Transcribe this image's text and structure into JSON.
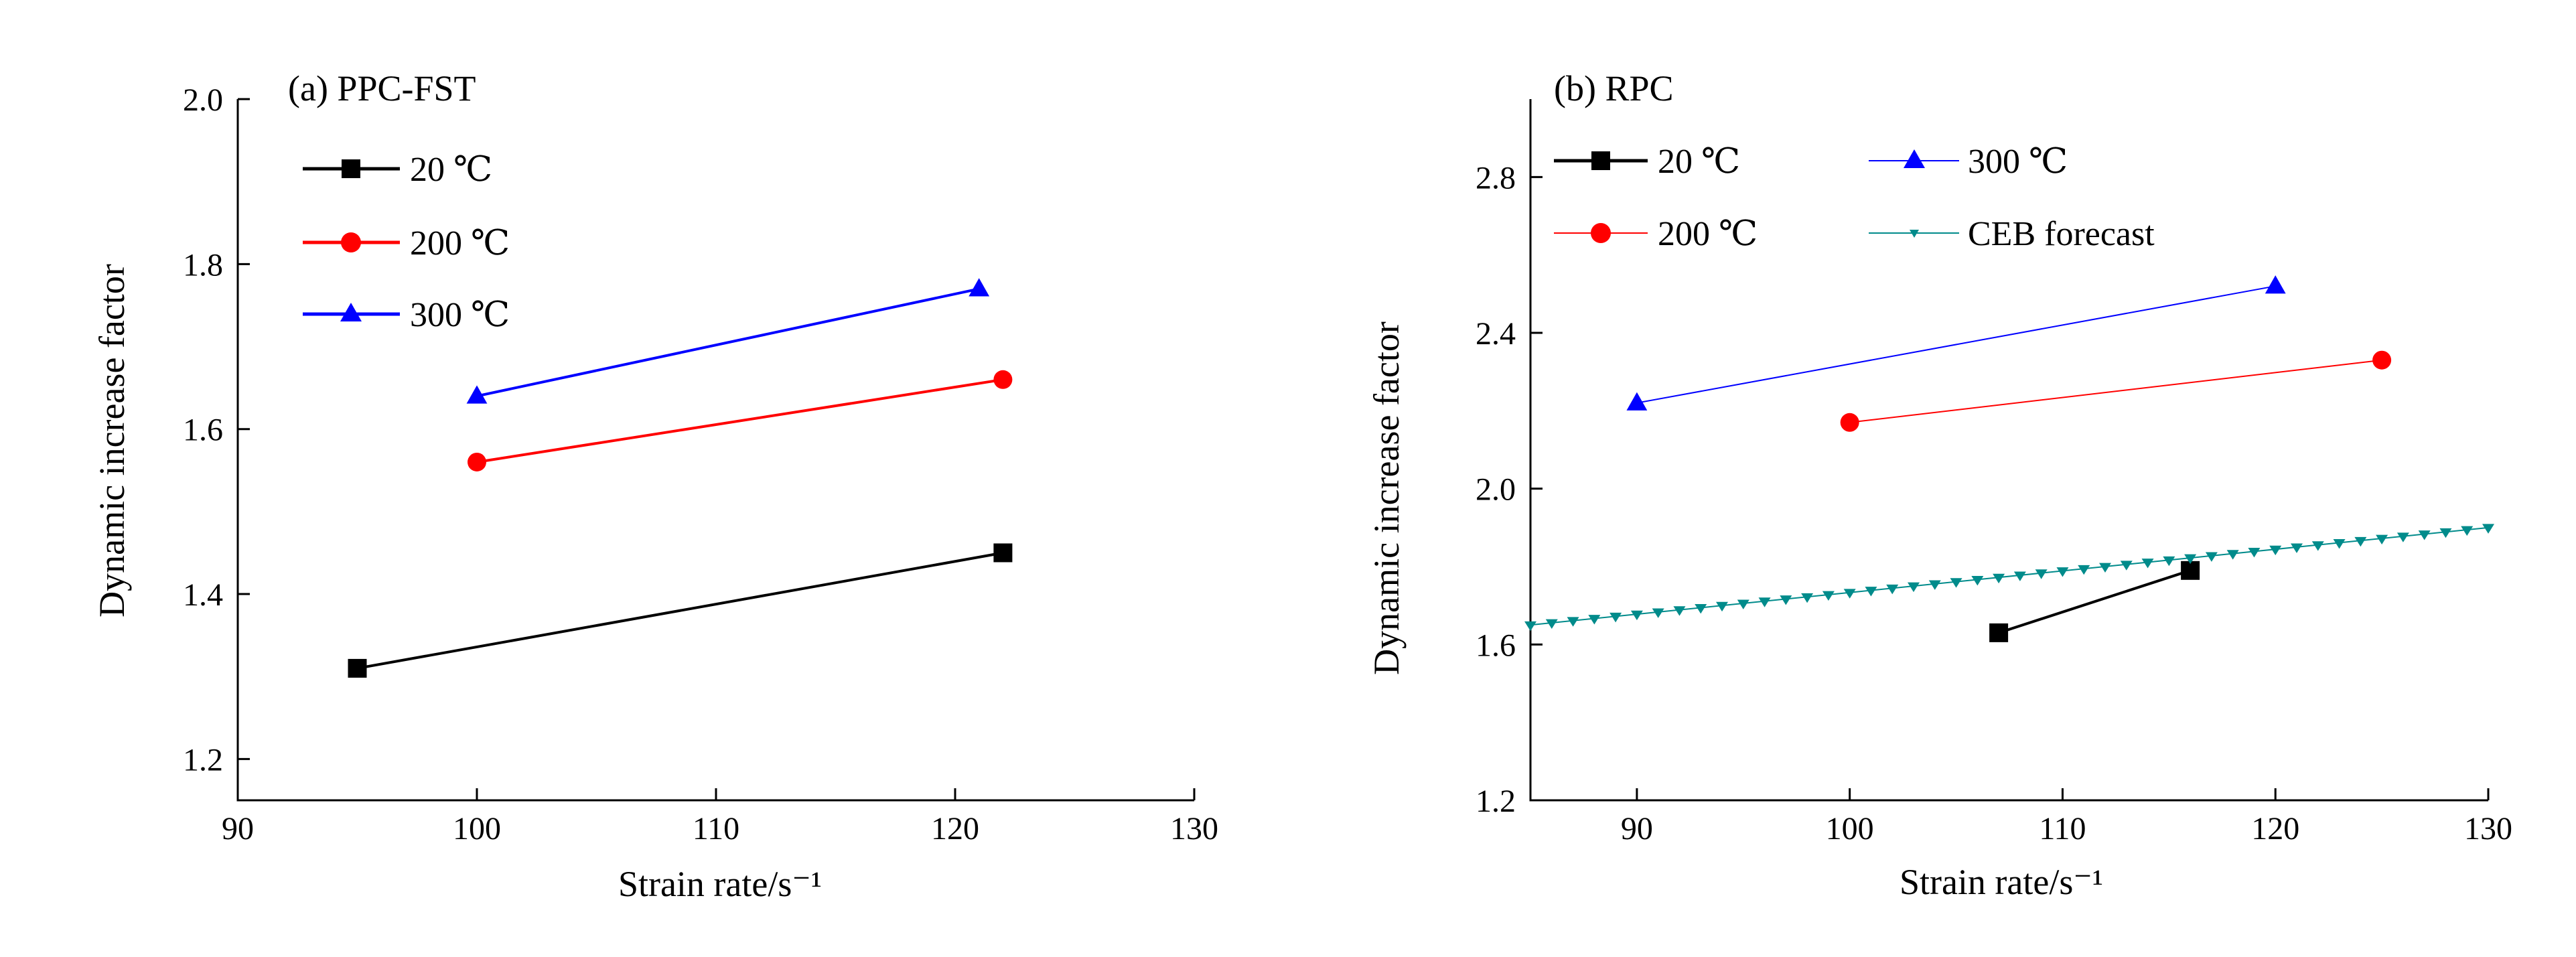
{
  "chart_data": [
    {
      "type": "line",
      "title": "(a) PPC-FST",
      "xlabel": "Strain rate/s⁻¹",
      "ylabel": "Dynamic increase factor",
      "xlim": [
        90,
        130
      ],
      "ylim": [
        1.15,
        2.0
      ],
      "xticks": [
        90,
        100,
        110,
        120,
        130
      ],
      "yticks": [
        1.2,
        1.4,
        1.6,
        1.8,
        2.0
      ],
      "xtick_labels": [
        "90",
        "100",
        "110",
        "120",
        "130"
      ],
      "ytick_labels": [
        "1.2",
        "1.4",
        "1.6",
        "1.8",
        "2.0"
      ],
      "grid": false,
      "legend_position": "top-left",
      "series": [
        {
          "name": "20 ℃",
          "color": "#000000",
          "marker": "square",
          "x": [
            95,
            122
          ],
          "y": [
            1.31,
            1.45
          ]
        },
        {
          "name": "200 ℃",
          "color": "#ff0000",
          "marker": "circle",
          "x": [
            100,
            122
          ],
          "y": [
            1.56,
            1.66
          ]
        },
        {
          "name": "300 ℃",
          "color": "#0000ff",
          "marker": "triangle-up",
          "x": [
            100,
            121
          ],
          "y": [
            1.64,
            1.77
          ]
        }
      ]
    },
    {
      "type": "line",
      "title": "(b) RPC",
      "xlabel": "Strain rate/s⁻¹",
      "ylabel": "Dynamic increase factor",
      "xlim": [
        85,
        130
      ],
      "ylim": [
        1.2,
        3.0
      ],
      "xticks": [
        90,
        100,
        110,
        120,
        130
      ],
      "yticks": [
        1.2,
        1.6,
        2.0,
        2.4,
        2.8
      ],
      "xtick_labels": [
        "90",
        "100",
        "110",
        "120",
        "130"
      ],
      "ytick_labels": [
        "1.2",
        "1.6",
        "2.0",
        "2.4",
        "2.8"
      ],
      "grid": false,
      "legend_position": "top",
      "series": [
        {
          "name": "20 ℃",
          "color": "#000000",
          "marker": "square",
          "x": [
            107,
            116
          ],
          "y": [
            1.63,
            1.79
          ]
        },
        {
          "name": "300 ℃",
          "color": "#0000ff",
          "marker": "triangle-up",
          "x": [
            90,
            120
          ],
          "y": [
            2.22,
            2.52
          ]
        },
        {
          "name": "200 ℃",
          "color": "#ff0000",
          "marker": "circle",
          "x": [
            100,
            125
          ],
          "y": [
            2.17,
            2.33
          ]
        },
        {
          "name": "CEB forecast",
          "color": "#008b8b",
          "marker": "triangle-down",
          "x": [
            85,
            130
          ],
          "y": [
            1.65,
            1.9
          ]
        }
      ]
    }
  ]
}
